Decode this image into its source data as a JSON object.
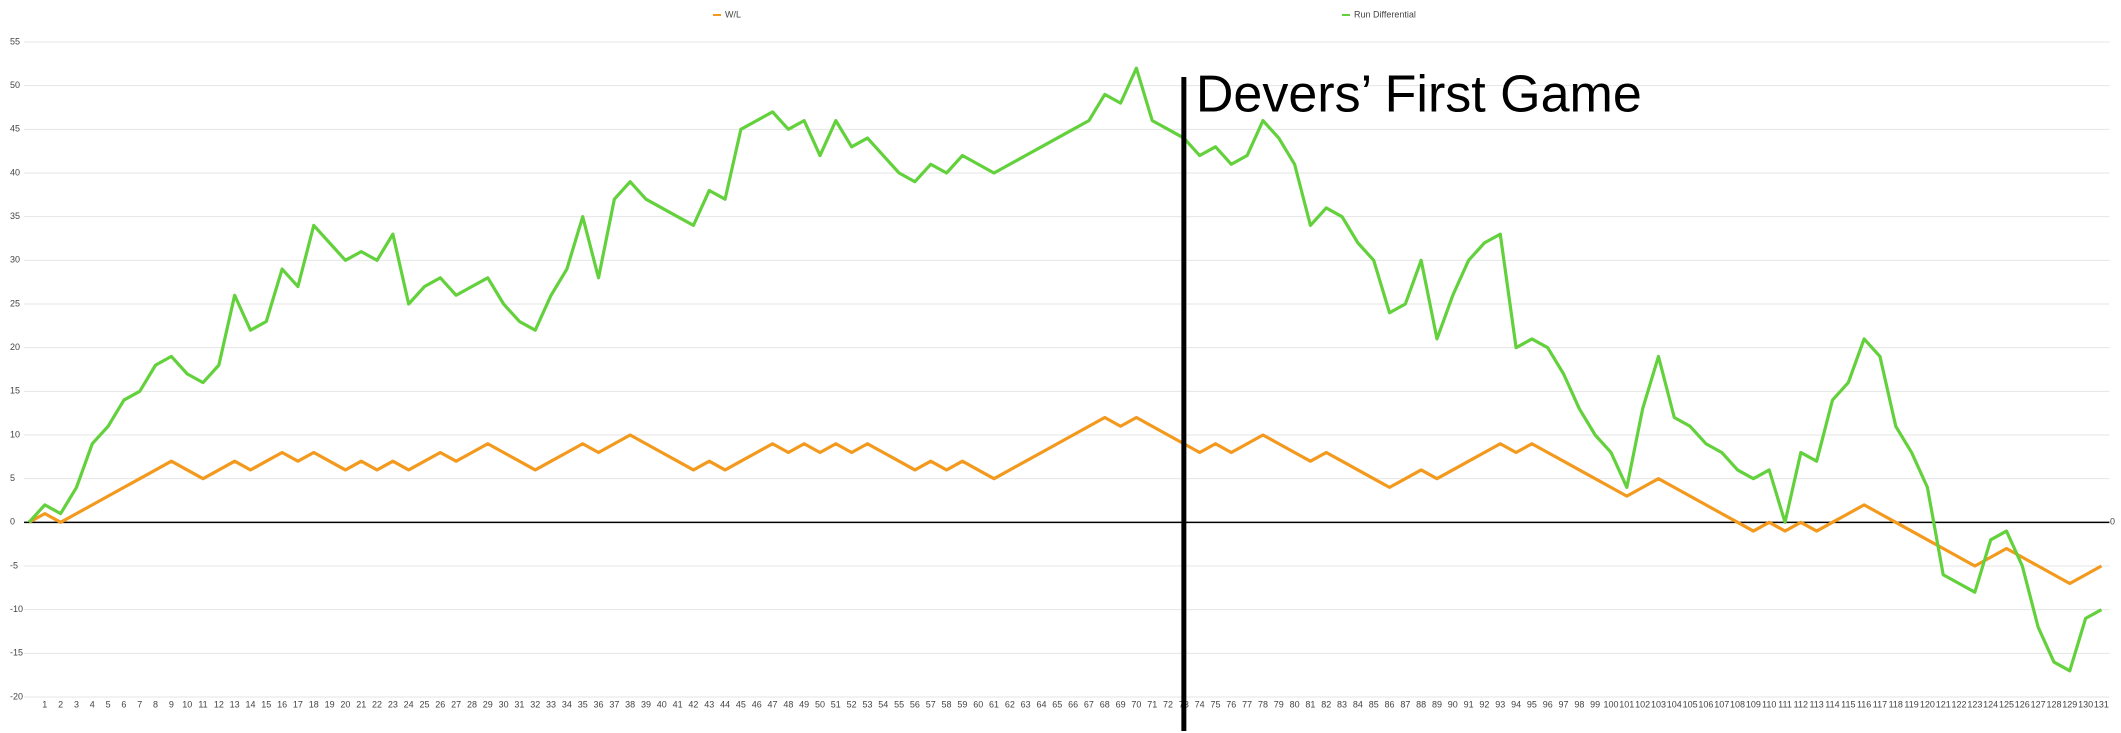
{
  "chart_data": {
    "type": "line",
    "categories": [
      null,
      "1",
      "2",
      "3",
      "4",
      "5",
      "6",
      "7",
      "8",
      "9",
      "10",
      "11",
      "12",
      "13",
      "14",
      "15",
      "16",
      "17",
      "18",
      "19",
      "20",
      "21",
      "22",
      "23",
      "24",
      "25",
      "26",
      "27",
      "28",
      "29",
      "30",
      "31",
      "32",
      "33",
      "34",
      "35",
      "36",
      "37",
      "38",
      "39",
      "40",
      "41",
      "42",
      "43",
      "44",
      "45",
      "46",
      "47",
      "48",
      "49",
      "50",
      "51",
      "52",
      "53",
      "54",
      "55",
      "56",
      "57",
      "58",
      "59",
      "60",
      "61",
      "62",
      "63",
      "64",
      "65",
      "66",
      "67",
      "68",
      "69",
      "70",
      "71",
      "72",
      "73",
      "74",
      "75",
      "76",
      "77",
      "78",
      "79",
      "80",
      "81",
      "82",
      "83",
      "84",
      "85",
      "86",
      "87",
      "88",
      "89",
      "90",
      "91",
      "92",
      "93",
      "94",
      "95",
      "96",
      "97",
      "98",
      "99",
      "100",
      "101",
      "102",
      "103",
      "104",
      "105",
      "106",
      "107",
      "108",
      "109",
      "110",
      "111",
      "112",
      "113",
      "114",
      "115",
      "116",
      "117",
      "118",
      "119",
      "120",
      "121",
      "122",
      "123",
      "124",
      "125",
      "126",
      "127",
      "128",
      "129",
      "130",
      "131"
    ],
    "series": [
      {
        "name": "W/L",
        "color": "#f39a1e",
        "values": [
          0,
          1,
          0,
          1,
          2,
          3,
          4,
          5,
          6,
          7,
          6,
          5,
          6,
          7,
          6,
          7,
          8,
          7,
          8,
          7,
          6,
          7,
          6,
          7,
          6,
          7,
          8,
          7,
          8,
          9,
          8,
          7,
          6,
          7,
          8,
          9,
          8,
          9,
          10,
          9,
          8,
          7,
          6,
          7,
          6,
          7,
          8,
          9,
          8,
          9,
          8,
          9,
          8,
          9,
          8,
          7,
          6,
          7,
          6,
          7,
          6,
          5,
          6,
          7,
          8,
          9,
          10,
          11,
          12,
          11,
          12,
          11,
          10,
          9,
          8,
          9,
          8,
          9,
          10,
          9,
          8,
          7,
          8,
          7,
          6,
          5,
          4,
          5,
          6,
          5,
          6,
          7,
          8,
          9,
          8,
          9,
          8,
          7,
          6,
          5,
          4,
          3,
          4,
          5,
          4,
          3,
          2,
          1,
          0,
          -1,
          0,
          -1,
          0,
          -1,
          0,
          1,
          2,
          1,
          0,
          -1,
          -2,
          -3,
          -4,
          -5,
          -4,
          -3,
          -4,
          -5,
          -6,
          -7,
          -6,
          -5
        ]
      },
      {
        "name": "Run Differential",
        "color": "#62d13c",
        "values": [
          0,
          2,
          1,
          4,
          9,
          11,
          14,
          15,
          18,
          19,
          17,
          16,
          18,
          26,
          22,
          23,
          29,
          27,
          34,
          32,
          30,
          31,
          30,
          33,
          25,
          27,
          28,
          26,
          27,
          28,
          25,
          23,
          22,
          26,
          29,
          35,
          28,
          37,
          39,
          37,
          36,
          35,
          34,
          38,
          37,
          45,
          46,
          47,
          45,
          46,
          42,
          46,
          43,
          44,
          42,
          40,
          39,
          41,
          40,
          42,
          41,
          40,
          41,
          42,
          43,
          44,
          45,
          46,
          49,
          48,
          52,
          46,
          45,
          44,
          42,
          43,
          41,
          42,
          46,
          44,
          41,
          34,
          36,
          35,
          32,
          30,
          24,
          25,
          30,
          21,
          26,
          30,
          32,
          33,
          20,
          21,
          20,
          17,
          13,
          10,
          8,
          4,
          13,
          19,
          12,
          11,
          9,
          8,
          6,
          5,
          6,
          0,
          8,
          7,
          14,
          16,
          21,
          19,
          11,
          8,
          4,
          -6,
          -7,
          -8,
          -2,
          -1,
          -5,
          -12,
          -16,
          -17,
          -11,
          -10
        ]
      }
    ],
    "ylim": [
      -20,
      55
    ],
    "yticks": [
      -20,
      -15,
      -10,
      -5,
      0,
      5,
      10,
      15,
      20,
      25,
      30,
      35,
      40,
      45,
      50,
      55
    ],
    "y2lim": [
      -20,
      55
    ],
    "y2ticks": [
      0
    ],
    "grid": true,
    "legend": "top",
    "annotation": {
      "text": "Devers’ First Game",
      "x": "73"
    }
  }
}
